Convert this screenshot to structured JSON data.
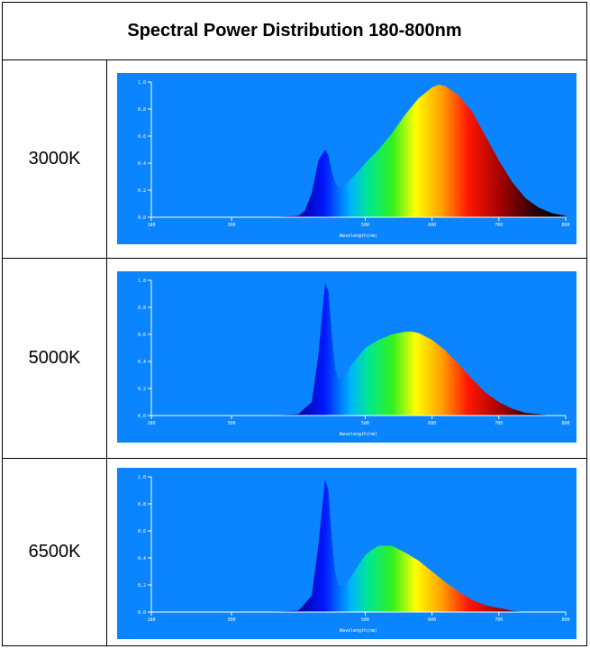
{
  "header": {
    "title": "Spectral Power Distribution 180-800nm"
  },
  "rows": [
    {
      "label": "3000K"
    },
    {
      "label": "5000K"
    },
    {
      "label": "6500K"
    }
  ],
  "colors": {
    "plot_bg": "#0a84ff",
    "axis": "#ffffff",
    "tick_text": "#ffffff"
  },
  "chart_data": [
    {
      "type": "area",
      "title": "3000K",
      "xlabel": "Wavelength(nm)",
      "ylabel": "",
      "xlim": [
        180,
        800
      ],
      "ylim": [
        0,
        1.0
      ],
      "x_ticks": [
        "180",
        "300",
        "500",
        "600",
        "700",
        "800"
      ],
      "y_ticks": [
        "0.0",
        "0.2",
        "0.4",
        "0.6",
        "0.8",
        "1.0"
      ],
      "series": [
        {
          "x": [
            180,
            350,
            400,
            410,
            420,
            430,
            440,
            445,
            450,
            455,
            460,
            470,
            480,
            490,
            500,
            520,
            540,
            560,
            580,
            600,
            610,
            620,
            640,
            660,
            680,
            700,
            720,
            740,
            760,
            780,
            800
          ],
          "y": [
            0,
            0,
            0.01,
            0.05,
            0.18,
            0.42,
            0.5,
            0.46,
            0.34,
            0.26,
            0.22,
            0.24,
            0.29,
            0.34,
            0.4,
            0.5,
            0.62,
            0.76,
            0.88,
            0.96,
            0.98,
            0.97,
            0.9,
            0.78,
            0.6,
            0.42,
            0.26,
            0.14,
            0.07,
            0.03,
            0.01
          ]
        }
      ]
    },
    {
      "type": "area",
      "title": "5000K",
      "xlabel": "Wavelength(nm)",
      "ylabel": "",
      "xlim": [
        180,
        800
      ],
      "ylim": [
        0,
        1.0
      ],
      "x_ticks": [
        "180",
        "300",
        "500",
        "600",
        "700",
        "800"
      ],
      "y_ticks": [
        "0.0",
        "0.2",
        "0.4",
        "0.6",
        "0.8",
        "1.0"
      ],
      "series": [
        {
          "x": [
            180,
            350,
            400,
            420,
            430,
            440,
            445,
            450,
            455,
            460,
            470,
            480,
            490,
            500,
            520,
            540,
            560,
            570,
            580,
            600,
            620,
            640,
            660,
            680,
            700,
            720,
            740,
            760,
            780,
            800
          ],
          "y": [
            0,
            0,
            0.01,
            0.1,
            0.45,
            0.98,
            0.92,
            0.6,
            0.35,
            0.27,
            0.3,
            0.38,
            0.44,
            0.5,
            0.56,
            0.6,
            0.62,
            0.62,
            0.61,
            0.56,
            0.48,
            0.38,
            0.27,
            0.17,
            0.1,
            0.05,
            0.02,
            0.01,
            0,
            0
          ]
        }
      ]
    },
    {
      "type": "area",
      "title": "6500K",
      "xlabel": "Wavelength(nm)",
      "ylabel": "",
      "xlim": [
        180,
        800
      ],
      "ylim": [
        0,
        1.0
      ],
      "x_ticks": [
        "180",
        "300",
        "500",
        "600",
        "700",
        "800"
      ],
      "y_ticks": [
        "0.0",
        "0.2",
        "0.4",
        "0.6",
        "0.8",
        "1.0"
      ],
      "series": [
        {
          "x": [
            180,
            350,
            400,
            420,
            430,
            440,
            445,
            450,
            455,
            460,
            470,
            480,
            490,
            500,
            510,
            520,
            540,
            560,
            580,
            600,
            620,
            640,
            660,
            680,
            700,
            720,
            740,
            760,
            780,
            800
          ],
          "y": [
            0,
            0,
            0.01,
            0.12,
            0.5,
            0.98,
            0.9,
            0.55,
            0.3,
            0.2,
            0.2,
            0.27,
            0.35,
            0.42,
            0.46,
            0.49,
            0.49,
            0.44,
            0.38,
            0.3,
            0.22,
            0.15,
            0.09,
            0.05,
            0.03,
            0.01,
            0,
            0,
            0,
            0
          ]
        }
      ]
    }
  ]
}
